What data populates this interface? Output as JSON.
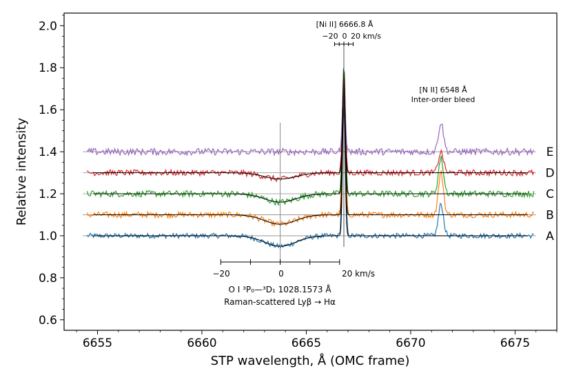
{
  "chart_data": {
    "type": "line",
    "xlabel": "STP wavelength, Å (OMC frame)",
    "ylabel": "Relative intensity",
    "xlim": [
      6653.4,
      6677.0
    ],
    "ylim": [
      0.55,
      2.06
    ],
    "x_ticks": [
      6655,
      6660,
      6665,
      6670,
      6675
    ],
    "x_tick_labels": [
      "6655",
      "6660",
      "6665",
      "6670",
      "6675"
    ],
    "y_ticks": [
      0.6,
      0.8,
      1.0,
      1.2,
      1.4,
      1.6,
      1.8,
      2.0
    ],
    "y_tick_labels": [
      "0.6",
      "0.8",
      "1.0",
      "1.2",
      "1.4",
      "1.6",
      "1.8",
      "2.0"
    ],
    "x_range": [
      6654.5,
      6675.9
    ],
    "ni_line_center": 6666.8,
    "raman_center": 6663.75,
    "series": [
      {
        "name": "A",
        "offset": 1.0,
        "color": "#1f77b4",
        "noise": 0.012,
        "raman_depth": 0.05,
        "nii_peak": 0.15,
        "ni_peak": 0.72,
        "has_model": true
      },
      {
        "name": "B",
        "offset": 1.1,
        "color": "#ff7f0e",
        "noise": 0.014,
        "raman_depth": 0.045,
        "nii_peak": 0.2,
        "ni_peak": 0.66,
        "has_model": true
      },
      {
        "name": "C",
        "offset": 1.2,
        "color": "#2ca02c",
        "noise": 0.015,
        "raman_depth": 0.04,
        "nii_peak": 0.17,
        "ni_peak": 0.62,
        "has_model": true
      },
      {
        "name": "D",
        "offset": 1.3,
        "color": "#d62728",
        "noise": 0.014,
        "raman_depth": 0.03,
        "nii_peak": 0.1,
        "ni_peak": 0.48,
        "has_model": true
      },
      {
        "name": "E",
        "offset": 1.4,
        "color": "#9467bd",
        "noise": 0.016,
        "raman_depth": 0.0,
        "nii_peak": 0.14,
        "ni_peak": 0.3,
        "has_model": false
      }
    ],
    "top_scale": {
      "title": "[Ni II] 6666.8 Å",
      "tick_label_left": "−20",
      "tick_label_mid": "0",
      "tick_label_right": "20 km/s",
      "velocities": [
        -20,
        -10,
        0,
        10,
        20
      ]
    },
    "bottom_scale": {
      "tick_label_left": "−20",
      "tick_label_mid": "0",
      "tick_label_right": "20 km/s",
      "velocities": [
        -20,
        -10,
        0,
        10,
        20
      ],
      "annotation_line1": "O I ³P₀—³D₁ 1028.1573 Å",
      "annotation_line2": "Raman-scattered Lyβ → Hα"
    },
    "nii_annotation": {
      "line1": "[N II] 6548 Å",
      "line2": "Inter-order bleed"
    }
  }
}
